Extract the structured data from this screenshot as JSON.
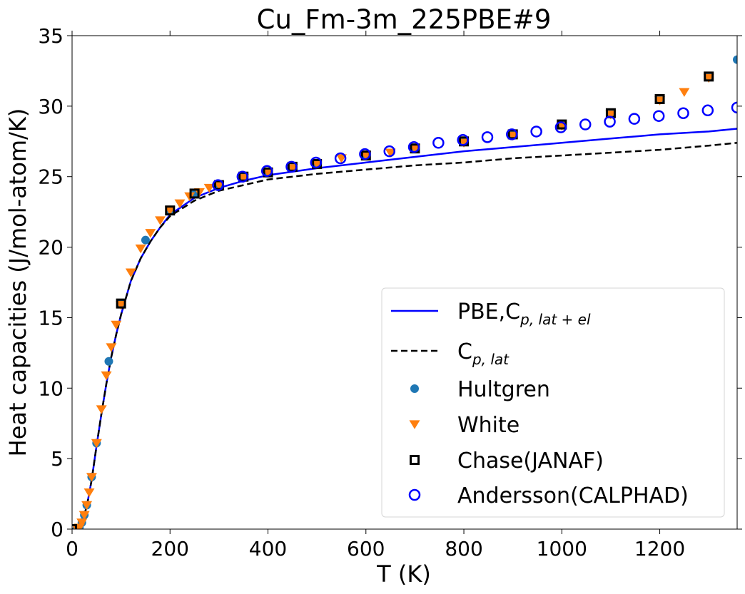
{
  "chart_data": {
    "type": "line",
    "title": "Cu_Fm-3m_225PBE#9",
    "xlabel": "T (K)",
    "ylabel": "Heat capacities (J/mol-atom/K)",
    "xlim": [
      0,
      1358
    ],
    "ylim": [
      0,
      35
    ],
    "x_ticks": [
      0,
      200,
      400,
      600,
      800,
      1000,
      1200
    ],
    "y_ticks": [
      0,
      5,
      10,
      15,
      20,
      25,
      30,
      35
    ],
    "grid": false,
    "legend_position": "lower-right",
    "series": [
      {
        "name": "PBE,C_{p,lat+el}",
        "label_main": "PBE,C",
        "label_sub": "p, lat + el",
        "kind": "line",
        "style": "solid",
        "color": "#0000ff",
        "x": [
          0,
          10,
          20,
          30,
          40,
          50,
          60,
          70,
          80,
          90,
          100,
          120,
          140,
          160,
          180,
          200,
          250,
          300,
          350,
          400,
          500,
          600,
          700,
          800,
          900,
          1000,
          1100,
          1200,
          1300,
          1358
        ],
        "y": [
          0,
          0.1,
          0.5,
          1.6,
          3.5,
          5.9,
          8.2,
          10.3,
          12.2,
          13.8,
          15.2,
          17.6,
          19.2,
          20.4,
          21.4,
          22.3,
          23.5,
          24.2,
          24.7,
          25.1,
          25.6,
          26.0,
          26.4,
          26.8,
          27.1,
          27.4,
          27.7,
          28.0,
          28.2,
          28.4
        ]
      },
      {
        "name": "C_{p,lat}",
        "label_main": "C",
        "label_sub": "p, lat",
        "kind": "line",
        "style": "dashed",
        "color": "#000000",
        "x": [
          0,
          10,
          20,
          30,
          40,
          50,
          60,
          70,
          80,
          90,
          100,
          120,
          140,
          160,
          180,
          200,
          250,
          300,
          350,
          400,
          500,
          600,
          700,
          800,
          900,
          1000,
          1100,
          1200,
          1300,
          1358
        ],
        "y": [
          0,
          0.1,
          0.5,
          1.6,
          3.5,
          5.9,
          8.2,
          10.3,
          12.2,
          13.8,
          15.2,
          17.6,
          19.2,
          20.4,
          21.4,
          22.2,
          23.3,
          24.0,
          24.4,
          24.8,
          25.2,
          25.5,
          25.8,
          26.0,
          26.3,
          26.5,
          26.7,
          26.9,
          27.2,
          27.4
        ]
      },
      {
        "name": "Hultgren",
        "kind": "marker",
        "marker": "circle-filled",
        "color": "#1f77b4",
        "x": [
          10,
          15,
          20,
          25,
          30,
          40,
          50,
          75,
          100,
          150,
          200,
          250,
          300,
          350,
          400,
          450,
          500,
          600,
          700,
          800,
          900,
          1000,
          1100,
          1200,
          1300,
          1358
        ],
        "y": [
          0.05,
          0.1,
          0.46,
          1.0,
          1.7,
          3.7,
          6.1,
          11.9,
          16.0,
          20.5,
          22.6,
          23.8,
          24.4,
          25.0,
          25.3,
          25.7,
          25.9,
          26.5,
          27.0,
          27.5,
          28.0,
          28.7,
          29.5,
          30.5,
          32.1,
          33.3
        ]
      },
      {
        "name": "White",
        "kind": "marker",
        "marker": "triangle-down",
        "color": "#ff7f0e",
        "x": [
          10,
          15,
          20,
          25,
          30,
          35,
          40,
          50,
          60,
          70,
          80,
          90,
          100,
          120,
          140,
          160,
          180,
          200,
          220,
          240,
          260,
          280,
          300,
          350,
          400,
          450,
          500,
          550,
          600,
          650,
          700,
          800,
          900,
          1000,
          1100,
          1200,
          1250,
          1300
        ],
        "y": [
          0.05,
          0.1,
          0.46,
          1.0,
          1.7,
          2.6,
          3.7,
          6.1,
          8.5,
          10.9,
          12.9,
          14.5,
          15.9,
          18.2,
          19.9,
          21.0,
          21.9,
          22.6,
          23.1,
          23.6,
          23.9,
          24.2,
          24.4,
          24.9,
          25.3,
          25.6,
          25.9,
          26.3,
          26.5,
          26.7,
          27.0,
          27.4,
          27.9,
          28.6,
          29.4,
          30.4,
          31.0,
          32.0
        ]
      },
      {
        "name": "Chase(JANAF)",
        "kind": "marker",
        "marker": "square-open",
        "color": "#000000",
        "x": [
          0,
          100,
          200,
          250,
          300,
          350,
          400,
          450,
          500,
          600,
          700,
          800,
          900,
          1000,
          1100,
          1200,
          1300
        ],
        "y": [
          0,
          16.0,
          22.6,
          23.8,
          24.4,
          25.0,
          25.3,
          25.7,
          25.9,
          26.5,
          27.0,
          27.5,
          28.0,
          28.7,
          29.5,
          30.5,
          32.1
        ]
      },
      {
        "name": "Andersson(CALPHAD)",
        "kind": "marker",
        "marker": "circle-open",
        "color": "#0000ff",
        "x": [
          298,
          348,
          398,
          448,
          498,
          548,
          598,
          648,
          698,
          748,
          798,
          848,
          898,
          948,
          998,
          1048,
          1098,
          1148,
          1198,
          1248,
          1298,
          1358
        ],
        "y": [
          24.4,
          25.0,
          25.4,
          25.7,
          26.0,
          26.3,
          26.6,
          26.8,
          27.1,
          27.4,
          27.6,
          27.8,
          28.0,
          28.2,
          28.5,
          28.7,
          28.9,
          29.1,
          29.3,
          29.5,
          29.7,
          29.9
        ]
      }
    ]
  }
}
